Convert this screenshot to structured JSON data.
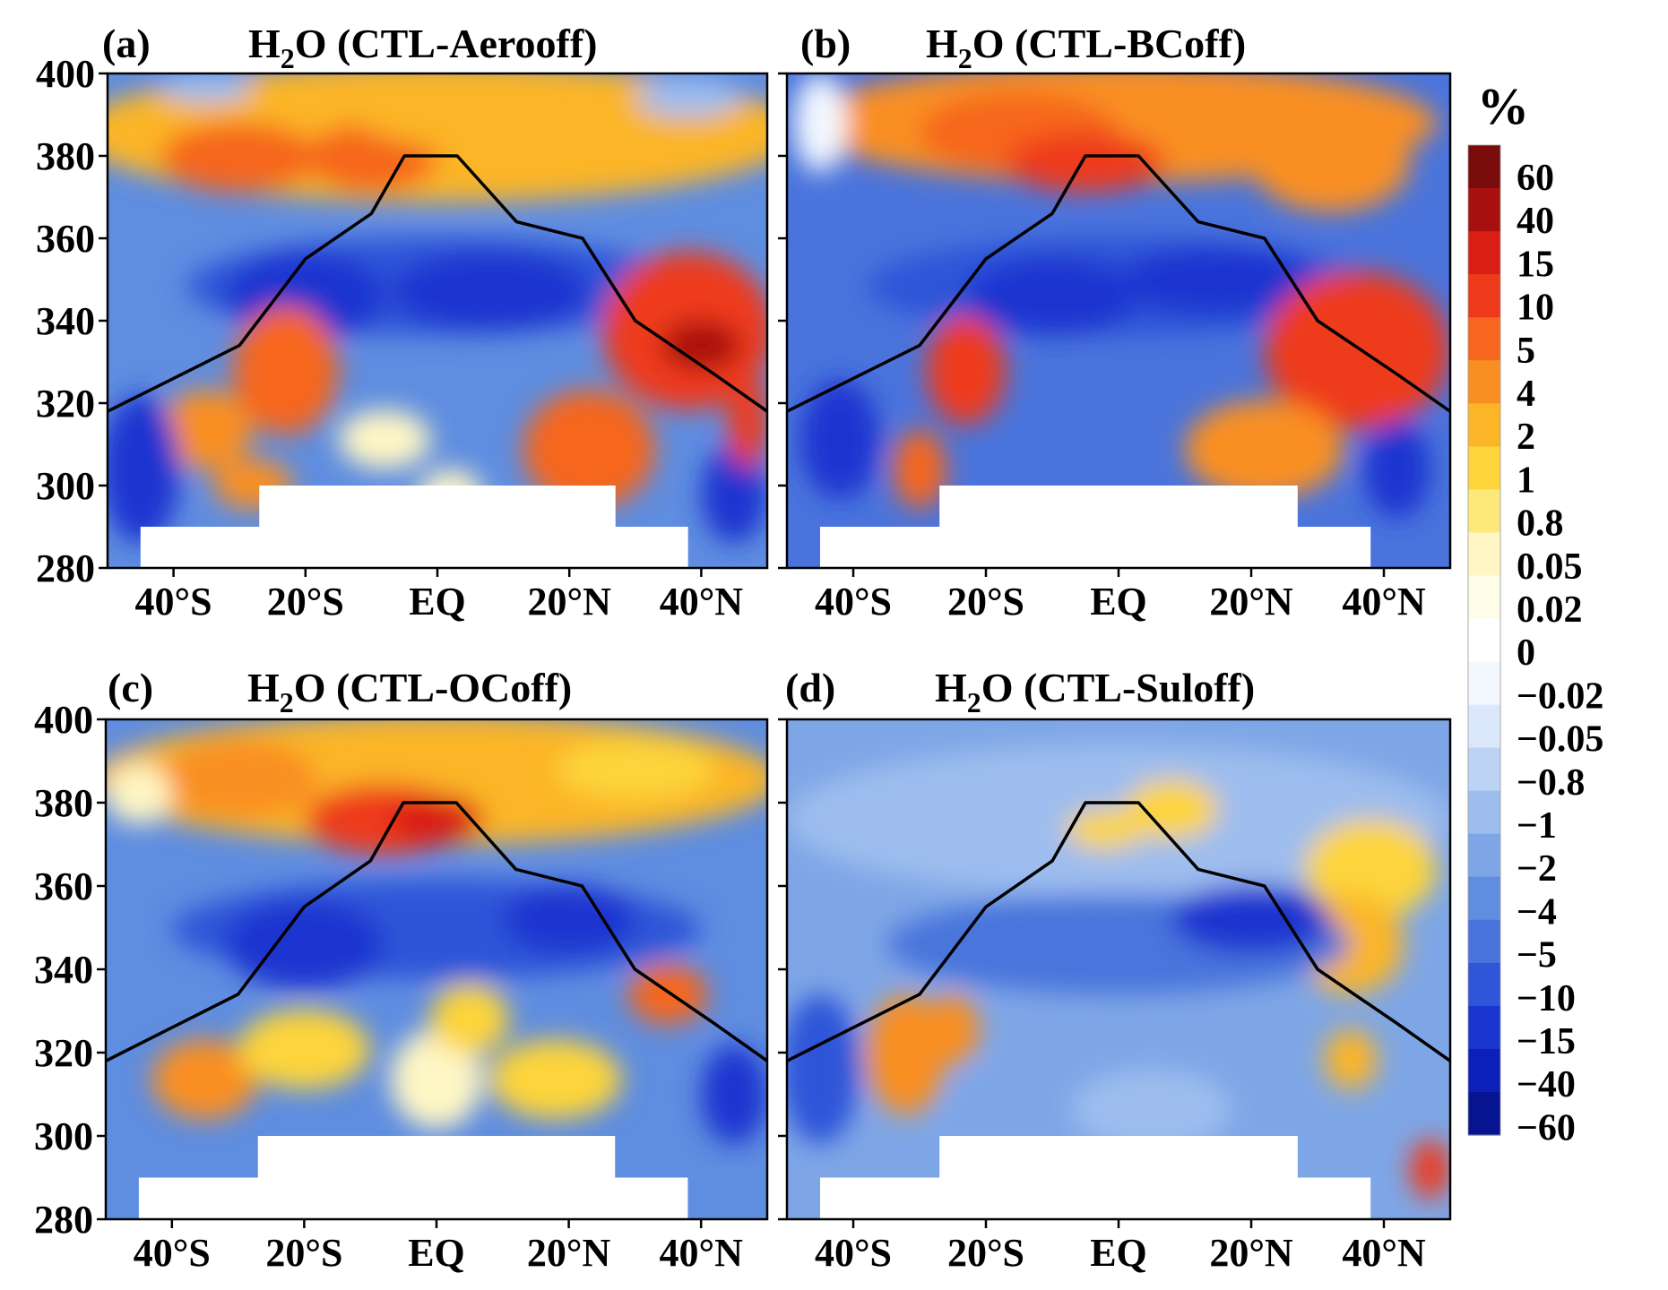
{
  "figure": {
    "colorbar": {
      "unit": "%",
      "labels": [
        "60",
        "40",
        "15",
        "10",
        "5",
        "4",
        "2",
        "1",
        "0.8",
        "0.05",
        "0.02",
        "0",
        "−0.02",
        "−0.05",
        "−0.8",
        "−1",
        "−2",
        "−4",
        "−5",
        "−10",
        "−15",
        "−40",
        "−60"
      ],
      "colors": [
        "#7a0c0c",
        "#a81010",
        "#d91e14",
        "#ee3a1a",
        "#f6661f",
        "#f98f22",
        "#fbb526",
        "#fdd43a",
        "#fde97a",
        "#fef6c4",
        "#fffde8",
        "#ffffff",
        "#f3f8ff",
        "#dbe8fb",
        "#bcd3f5",
        "#9dbdee",
        "#7ea6e6",
        "#5f8de0",
        "#4a74dc",
        "#2f55d8",
        "#1a36d0",
        "#0c1fb8",
        "#071491"
      ]
    }
  },
  "chart_data": [
    {
      "type": "heatmap",
      "panel_label": "(a)",
      "title": {
        "prefix": "H",
        "sub": "2",
        "suffix": "O (CTL-Aerooff)"
      },
      "y_ticks": [
        "400",
        "380",
        "360",
        "340",
        "320",
        "300",
        "280"
      ],
      "ylim": [
        280,
        400
      ],
      "x_ticks": [
        "40°S",
        "20°S",
        "EQ",
        "20°N",
        "40°N"
      ],
      "x_tick_values": [
        -40,
        -20,
        0,
        20,
        40
      ],
      "xlim": [
        -50,
        50
      ],
      "tropopause": [
        [
          -50,
          318
        ],
        [
          -40,
          326
        ],
        [
          -30,
          334
        ],
        [
          -20,
          355
        ],
        [
          -10,
          366
        ],
        [
          -5,
          380
        ],
        [
          3,
          380
        ],
        [
          12,
          364
        ],
        [
          22,
          360
        ],
        [
          30,
          340
        ],
        [
          42,
          327
        ],
        [
          50,
          318
        ]
      ]
    },
    {
      "type": "heatmap",
      "panel_label": "(b)",
      "title": {
        "prefix": "H",
        "sub": "2",
        "suffix": "O (CTL-BCoff)"
      },
      "y_ticks": [],
      "ylim": [
        280,
        400
      ],
      "x_ticks": [
        "40°S",
        "20°S",
        "EQ",
        "20°N",
        "40°N"
      ],
      "x_tick_values": [
        -40,
        -20,
        0,
        20,
        40
      ],
      "xlim": [
        -50,
        50
      ],
      "tropopause": [
        [
          -50,
          318
        ],
        [
          -40,
          326
        ],
        [
          -30,
          334
        ],
        [
          -20,
          355
        ],
        [
          -10,
          366
        ],
        [
          -5,
          380
        ],
        [
          3,
          380
        ],
        [
          12,
          364
        ],
        [
          22,
          360
        ],
        [
          30,
          340
        ],
        [
          42,
          327
        ],
        [
          50,
          318
        ]
      ]
    },
    {
      "type": "heatmap",
      "panel_label": "(c)",
      "title": {
        "prefix": "H",
        "sub": "2",
        "suffix": "O (CTL-OCoff)"
      },
      "y_ticks": [
        "400",
        "380",
        "360",
        "340",
        "320",
        "300",
        "280"
      ],
      "ylim": [
        280,
        400
      ],
      "x_ticks": [
        "40°S",
        "20°S",
        "EQ",
        "20°N",
        "40°N"
      ],
      "x_tick_values": [
        -40,
        -20,
        0,
        20,
        40
      ],
      "xlim": [
        -50,
        50
      ],
      "tropopause": [
        [
          -50,
          318
        ],
        [
          -40,
          326
        ],
        [
          -30,
          334
        ],
        [
          -20,
          355
        ],
        [
          -10,
          366
        ],
        [
          -5,
          380
        ],
        [
          3,
          380
        ],
        [
          12,
          364
        ],
        [
          22,
          360
        ],
        [
          30,
          340
        ],
        [
          42,
          327
        ],
        [
          50,
          318
        ]
      ]
    },
    {
      "type": "heatmap",
      "panel_label": "(d)",
      "title": {
        "prefix": "H",
        "sub": "2",
        "suffix": "O (CTL-Suloff)"
      },
      "y_ticks": [],
      "ylim": [
        280,
        400
      ],
      "x_ticks": [
        "40°S",
        "20°S",
        "EQ",
        "20°N",
        "40°N"
      ],
      "x_tick_values": [
        -40,
        -20,
        0,
        20,
        40
      ],
      "xlim": [
        -50,
        50
      ],
      "tropopause": [
        [
          -50,
          318
        ],
        [
          -40,
          326
        ],
        [
          -30,
          334
        ],
        [
          -20,
          355
        ],
        [
          -10,
          366
        ],
        [
          -5,
          380
        ],
        [
          3,
          380
        ],
        [
          12,
          364
        ],
        [
          22,
          360
        ],
        [
          30,
          340
        ],
        [
          42,
          327
        ],
        [
          50,
          318
        ]
      ]
    }
  ]
}
